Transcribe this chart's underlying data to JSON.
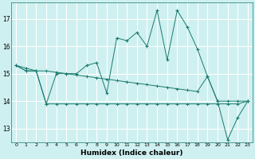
{
  "xlabel": "Humidex (Indice chaleur)",
  "background_color": "#cff0f0",
  "grid_color": "#ffffff",
  "line_color": "#1a7a6e",
  "ylim": [
    12.5,
    17.6
  ],
  "yticks": [
    13,
    14,
    15,
    16,
    17
  ],
  "x_ticks": [
    0,
    1,
    2,
    3,
    4,
    5,
    6,
    7,
    8,
    9,
    10,
    11,
    12,
    13,
    14,
    15,
    16,
    17,
    18,
    19,
    20,
    21,
    22,
    23
  ],
  "line1": [
    15.3,
    15.1,
    15.1,
    13.9,
    15.0,
    15.0,
    15.0,
    15.3,
    15.4,
    14.3,
    16.3,
    16.2,
    16.5,
    16.0,
    17.3,
    15.5,
    17.3,
    16.7,
    15.9,
    14.9,
    14.0,
    12.6,
    13.4,
    14.0
  ],
  "line2": [
    15.3,
    15.1,
    15.1,
    15.1,
    15.05,
    15.0,
    14.95,
    14.9,
    14.85,
    14.8,
    14.75,
    14.7,
    14.65,
    14.6,
    14.55,
    14.5,
    14.45,
    14.4,
    14.35,
    14.9,
    14.0,
    14.0,
    14.0,
    14.0
  ],
  "line3": [
    15.3,
    15.2,
    15.1,
    13.9,
    13.9,
    13.9,
    13.9,
    13.9,
    13.9,
    13.9,
    13.9,
    13.9,
    13.9,
    13.9,
    13.9,
    13.9,
    13.9,
    13.9,
    13.9,
    13.9,
    13.9,
    13.9,
    13.9,
    14.0
  ]
}
